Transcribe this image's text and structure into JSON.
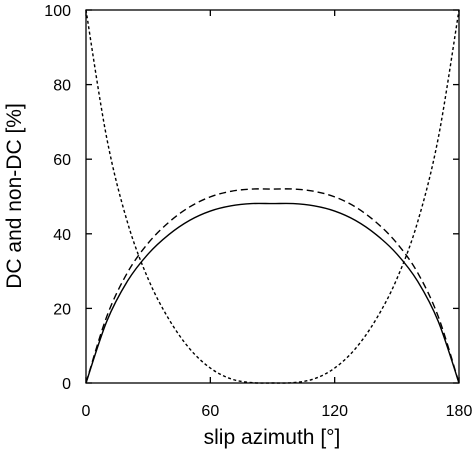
{
  "chart_data": {
    "type": "line",
    "xlabel": "slip azimuth [°]",
    "ylabel": "DC and non-DC [%]",
    "xlim": [
      0,
      180
    ],
    "ylim": [
      0,
      100
    ],
    "xticks": [
      0,
      60,
      120,
      180
    ],
    "yticks": [
      0,
      20,
      40,
      60,
      80,
      100
    ],
    "grid": false,
    "series": [
      {
        "style": "solid",
        "x": [
          0,
          10,
          20,
          30,
          40,
          50,
          60,
          70,
          80,
          90,
          100,
          110,
          120,
          130,
          140,
          150,
          160,
          170,
          180
        ],
        "y": [
          0,
          16.5,
          27.3,
          34.6,
          39.8,
          43.6,
          46.1,
          47.5,
          48.1,
          48.1,
          48.1,
          47.5,
          46.1,
          43.6,
          39.8,
          34.6,
          27.3,
          16.5,
          0
        ]
      },
      {
        "style": "dashed",
        "x": [
          0,
          10,
          20,
          30,
          40,
          50,
          60,
          70,
          80,
          90,
          100,
          110,
          120,
          130,
          140,
          150,
          160,
          170,
          180
        ],
        "y": [
          0,
          17.8,
          29.6,
          37.5,
          43.1,
          47.2,
          49.9,
          51.4,
          52.0,
          52.0,
          52.0,
          51.4,
          49.9,
          47.2,
          43.1,
          37.5,
          29.6,
          17.8,
          0
        ]
      },
      {
        "style": "dotted",
        "x": [
          0,
          10,
          20,
          30,
          40,
          50,
          60,
          70,
          80,
          90,
          100,
          110,
          120,
          130,
          140,
          150,
          160,
          170,
          180
        ],
        "y": [
          100,
          65.7,
          43.1,
          27.9,
          17.1,
          9.2,
          4.0,
          1.1,
          0.1,
          0,
          0.1,
          1.1,
          4.0,
          9.2,
          17.1,
          27.9,
          43.1,
          65.7,
          100
        ]
      }
    ]
  }
}
